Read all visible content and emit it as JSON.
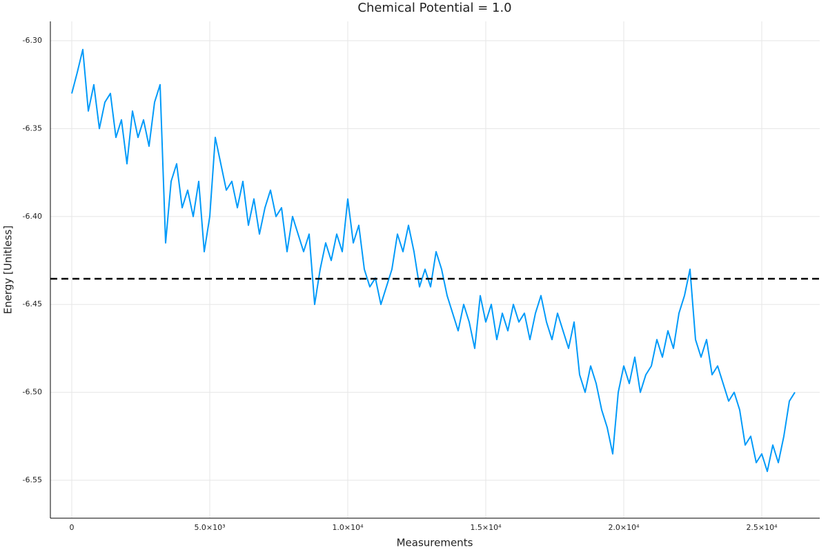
{
  "chart_data": {
    "type": "line",
    "title": "Chemical Potential = 1.0",
    "x_label": "Measurements",
    "y_label": "Energy [Unitless]",
    "color": "#009af9",
    "grid": true,
    "xlim": [
      -775,
      27100
    ],
    "ylim": [
      -6.5716,
      -6.289
    ],
    "xticks": [
      0,
      {
        "value": 5000,
        "label": "5.0×10³"
      },
      {
        "value": 10000,
        "label": "1.0×10⁴"
      },
      {
        "value": 15000,
        "label": "1.5×10⁴"
      },
      {
        "value": 20000,
        "label": "2.0×10⁴"
      },
      {
        "value": 25000,
        "label": "2.5×10⁴"
      }
    ],
    "yticks": [
      {
        "value": -6.3,
        "label": "-6.30"
      },
      -6.35,
      {
        "value": -6.4,
        "label": "-6.40"
      },
      -6.45,
      {
        "value": -6.5,
        "label": "-6.50"
      },
      -6.55
    ],
    "hline": {
      "value": -6.4354,
      "color": "#000000",
      "dashed": true
    },
    "x": [
      0,
      200,
      400,
      600,
      800,
      1000,
      1200,
      1400,
      1600,
      1800,
      2000,
      2200,
      2400,
      2600,
      2800,
      3000,
      3200,
      3400,
      3600,
      3800,
      4000,
      4200,
      4400,
      4600,
      4800,
      5000,
      5200,
      5400,
      5600,
      5800,
      6000,
      6200,
      6400,
      6600,
      6800,
      7000,
      7200,
      7400,
      7600,
      7800,
      8000,
      8200,
      8400,
      8600,
      8800,
      9000,
      9200,
      9400,
      9600,
      9800,
      10000,
      10200,
      10400,
      10600,
      10800,
      11000,
      11200,
      11400,
      11600,
      11800,
      12000,
      12200,
      12400,
      12600,
      12800,
      13000,
      13200,
      13400,
      13600,
      13800,
      14000,
      14200,
      14400,
      14600,
      14800,
      15000,
      15200,
      15400,
      15600,
      15800,
      16000,
      16200,
      16400,
      16600,
      16800,
      17000,
      17200,
      17400,
      17600,
      17800,
      18000,
      18200,
      18400,
      18600,
      18800,
      19000,
      19200,
      19400,
      19600,
      19800,
      20000,
      20200,
      20400,
      20600,
      20800,
      21000,
      21200,
      21400,
      21600,
      21800,
      22000,
      22200,
      22400,
      22600,
      22800,
      23000,
      23200,
      23400,
      23600,
      23800,
      24000,
      24200,
      24400,
      24600,
      24800,
      25000,
      25200,
      25400,
      25600,
      25800,
      26000,
      26200
    ],
    "values": [
      -6.33,
      -6.318,
      -6.305,
      -6.34,
      -6.325,
      -6.35,
      -6.335,
      -6.33,
      -6.355,
      -6.345,
      -6.37,
      -6.34,
      -6.355,
      -6.345,
      -6.36,
      -6.335,
      -6.325,
      -6.415,
      -6.38,
      -6.37,
      -6.395,
      -6.385,
      -6.4,
      -6.38,
      -6.42,
      -6.4,
      -6.355,
      -6.37,
      -6.385,
      -6.38,
      -6.395,
      -6.38,
      -6.405,
      -6.39,
      -6.41,
      -6.395,
      -6.385,
      -6.4,
      -6.395,
      -6.42,
      -6.4,
      -6.41,
      -6.42,
      -6.41,
      -6.45,
      -6.43,
      -6.415,
      -6.425,
      -6.41,
      -6.42,
      -6.39,
      -6.415,
      -6.405,
      -6.43,
      -6.44,
      -6.435,
      -6.45,
      -6.44,
      -6.43,
      -6.41,
      -6.42,
      -6.405,
      -6.42,
      -6.44,
      -6.43,
      -6.44,
      -6.42,
      -6.43,
      -6.445,
      -6.455,
      -6.465,
      -6.45,
      -6.46,
      -6.475,
      -6.445,
      -6.46,
      -6.45,
      -6.47,
      -6.455,
      -6.465,
      -6.45,
      -6.46,
      -6.455,
      -6.47,
      -6.455,
      -6.445,
      -6.46,
      -6.47,
      -6.455,
      -6.465,
      -6.475,
      -6.46,
      -6.49,
      -6.5,
      -6.485,
      -6.495,
      -6.51,
      -6.52,
      -6.535,
      -6.5,
      -6.485,
      -6.495,
      -6.48,
      -6.5,
      -6.49,
      -6.485,
      -6.47,
      -6.48,
      -6.465,
      -6.475,
      -6.455,
      -6.445,
      -6.43,
      -6.47,
      -6.48,
      -6.47,
      -6.49,
      -6.485,
      -6.495,
      -6.505,
      -6.5,
      -6.51,
      -6.53,
      -6.525,
      -6.54,
      -6.535,
      -6.545,
      -6.53,
      -6.54,
      -6.525,
      -6.505,
      -6.5
    ]
  }
}
